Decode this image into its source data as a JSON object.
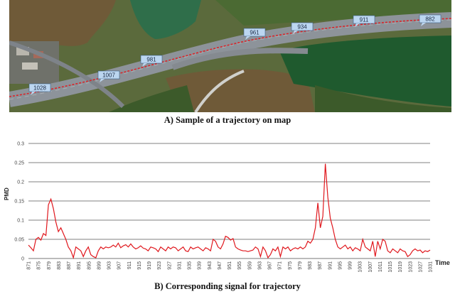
{
  "captions": {
    "map": "A) Sample of a trajectory on map",
    "signal": "B) Corresponding signal for trajectory"
  },
  "map": {
    "labels": [
      "1028",
      "1007",
      "981",
      "961",
      "934",
      "911",
      "882"
    ],
    "colors": {
      "river": "#6f5a38",
      "pond": "#2f6e4a",
      "field": "#1f5a2e",
      "forest": "#3c5a2a",
      "road": "#8d939a",
      "trajectory": "#d9252a",
      "tag": "#bcd6f0"
    }
  },
  "chart_data": {
    "type": "line",
    "title": "",
    "xlabel": "Time",
    "ylabel": "PMD",
    "ylim": [
      0,
      0.3
    ],
    "yticks": [
      "0",
      "0.05",
      "0.1",
      "0.15",
      "0.2",
      "0.25",
      "0.3"
    ],
    "x_tick_labels": [
      "871",
      "875",
      "879",
      "883",
      "887",
      "891",
      "895",
      "899",
      "903",
      "907",
      "911",
      "915",
      "919",
      "923",
      "927",
      "931",
      "935",
      "939",
      "943",
      "947",
      "951",
      "955",
      "959",
      "963",
      "967",
      "971",
      "975",
      "979",
      "983",
      "987",
      "991",
      "995",
      "999",
      "1003",
      "1007",
      "1011",
      "1015",
      "1019",
      "1023",
      "1027",
      "1031"
    ],
    "grid": true,
    "series": [
      {
        "color": "#e0171d",
        "values": [
          0.035,
          0.028,
          0.02,
          0.05,
          0.055,
          0.048,
          0.065,
          0.06,
          0.14,
          0.155,
          0.13,
          0.095,
          0.07,
          0.08,
          0.065,
          0.05,
          0.03,
          0.02,
          0.002,
          0.03,
          0.025,
          0.02,
          0.005,
          0.02,
          0.03,
          0.01,
          0.005,
          0.002,
          0.02,
          0.03,
          0.025,
          0.03,
          0.028,
          0.03,
          0.035,
          0.03,
          0.04,
          0.028,
          0.033,
          0.036,
          0.03,
          0.038,
          0.03,
          0.025,
          0.028,
          0.033,
          0.027,
          0.025,
          0.02,
          0.03,
          0.028,
          0.025,
          0.018,
          0.03,
          0.025,
          0.02,
          0.03,
          0.025,
          0.03,
          0.028,
          0.02,
          0.025,
          0.03,
          0.02,
          0.018,
          0.03,
          0.025,
          0.028,
          0.03,
          0.025,
          0.02,
          0.028,
          0.025,
          0.02,
          0.05,
          0.045,
          0.03,
          0.025,
          0.038,
          0.058,
          0.055,
          0.048,
          0.052,
          0.03,
          0.025,
          0.022,
          0.02,
          0.02,
          0.018,
          0.02,
          0.022,
          0.03,
          0.025,
          0.005,
          0.03,
          0.02,
          0.002,
          0.01,
          0.025,
          0.02,
          0.03,
          0.005,
          0.03,
          0.025,
          0.03,
          0.02,
          0.025,
          0.028,
          0.025,
          0.03,
          0.025,
          0.03,
          0.045,
          0.04,
          0.05,
          0.08,
          0.145,
          0.08,
          0.11,
          0.247,
          0.16,
          0.105,
          0.08,
          0.05,
          0.03,
          0.025,
          0.03,
          0.035,
          0.025,
          0.03,
          0.02,
          0.028,
          0.025,
          0.02,
          0.05,
          0.03,
          0.025,
          0.02,
          0.045,
          0.005,
          0.045,
          0.025,
          0.05,
          0.045,
          0.02,
          0.015,
          0.025,
          0.02,
          0.015,
          0.025,
          0.02,
          0.018,
          0.005,
          0.01,
          0.02,
          0.025,
          0.02,
          0.022,
          0.015,
          0.02,
          0.018,
          0.022
        ]
      }
    ]
  }
}
